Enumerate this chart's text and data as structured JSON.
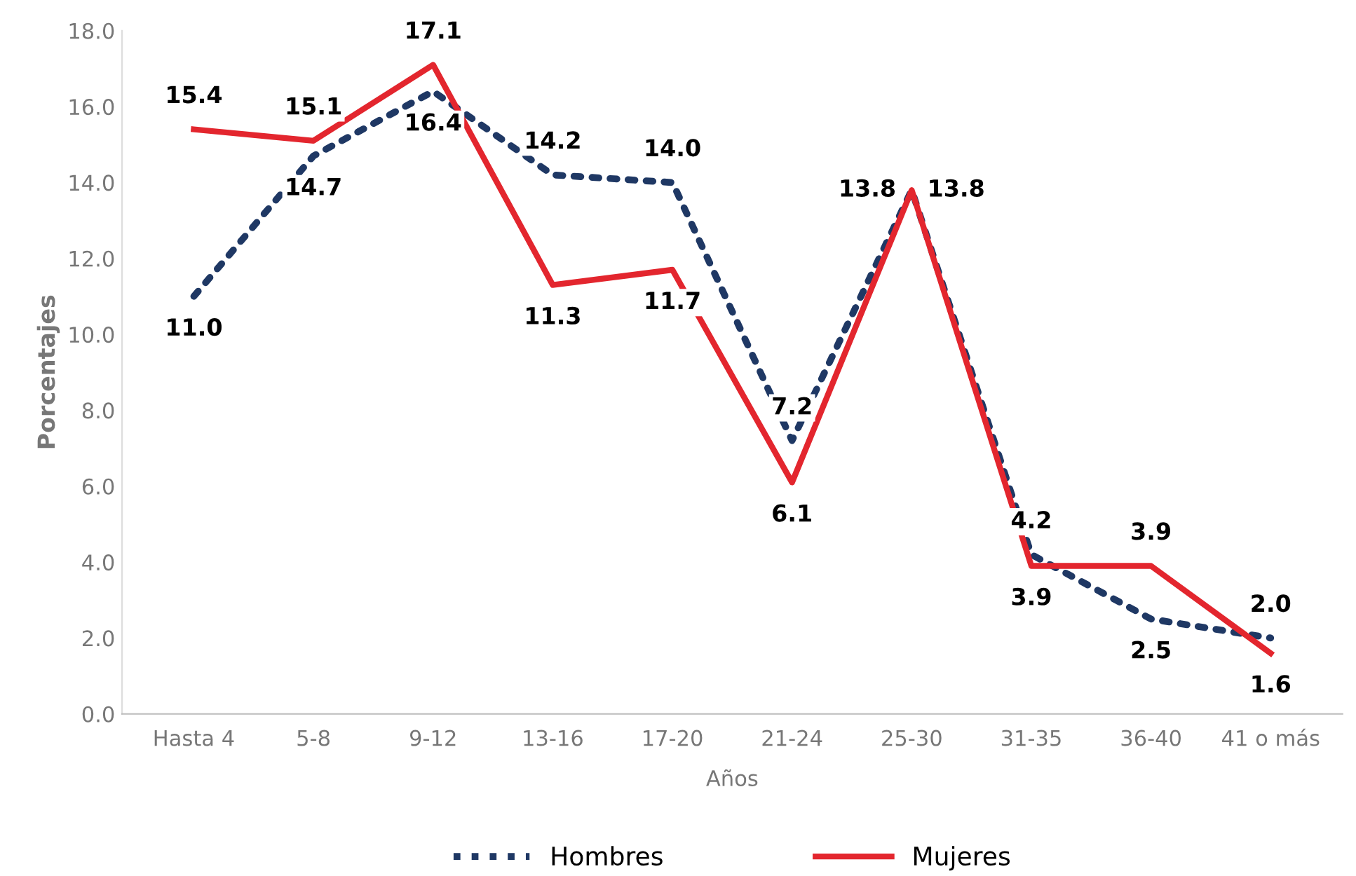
{
  "chart_data": {
    "type": "line",
    "xlabel": "Años",
    "ylabel": "Porcentajes",
    "categories": [
      "Hasta 4",
      "5-8",
      "9-12",
      "13-16",
      "17-20",
      "21-24",
      "25-30",
      "31-35",
      "36-40",
      "41 o más"
    ],
    "series": [
      {
        "name": "Hombres",
        "color": "#1f3864",
        "line_style": "dotted",
        "values": [
          11.0,
          14.7,
          16.4,
          14.2,
          14.0,
          7.2,
          13.8,
          4.2,
          2.5,
          2.0
        ],
        "value_labels": [
          "11.0",
          "14.7",
          "16.4",
          "14.2",
          "14.0",
          "7.2",
          "13.8",
          "4.2",
          "2.5",
          "2.0"
        ]
      },
      {
        "name": "Mujeres",
        "color": "#e3262e",
        "line_style": "solid",
        "values": [
          15.4,
          15.1,
          17.1,
          11.3,
          11.7,
          6.1,
          13.8,
          3.9,
          3.9,
          1.6
        ],
        "value_labels": [
          "15.4",
          "15.1",
          "17.1",
          "11.3",
          "11.7",
          "6.1",
          "13.8",
          "3.9",
          "3.9",
          "1.6"
        ]
      }
    ],
    "ylim": [
      0,
      18
    ],
    "yticks": [
      {
        "value": 0,
        "label": "0.0"
      },
      {
        "value": 2,
        "label": "2.0"
      },
      {
        "value": 4,
        "label": "4.0"
      },
      {
        "value": 6,
        "label": "6.0"
      },
      {
        "value": 8,
        "label": "8.0"
      },
      {
        "value": 10,
        "label": "10.0"
      },
      {
        "value": 12,
        "label": "12.0"
      },
      {
        "value": 14,
        "label": "14.0"
      },
      {
        "value": 16,
        "label": "16.0"
      },
      {
        "value": 18,
        "label": "18.0"
      }
    ],
    "grid": false,
    "legend": "bottom",
    "marker": "none"
  }
}
